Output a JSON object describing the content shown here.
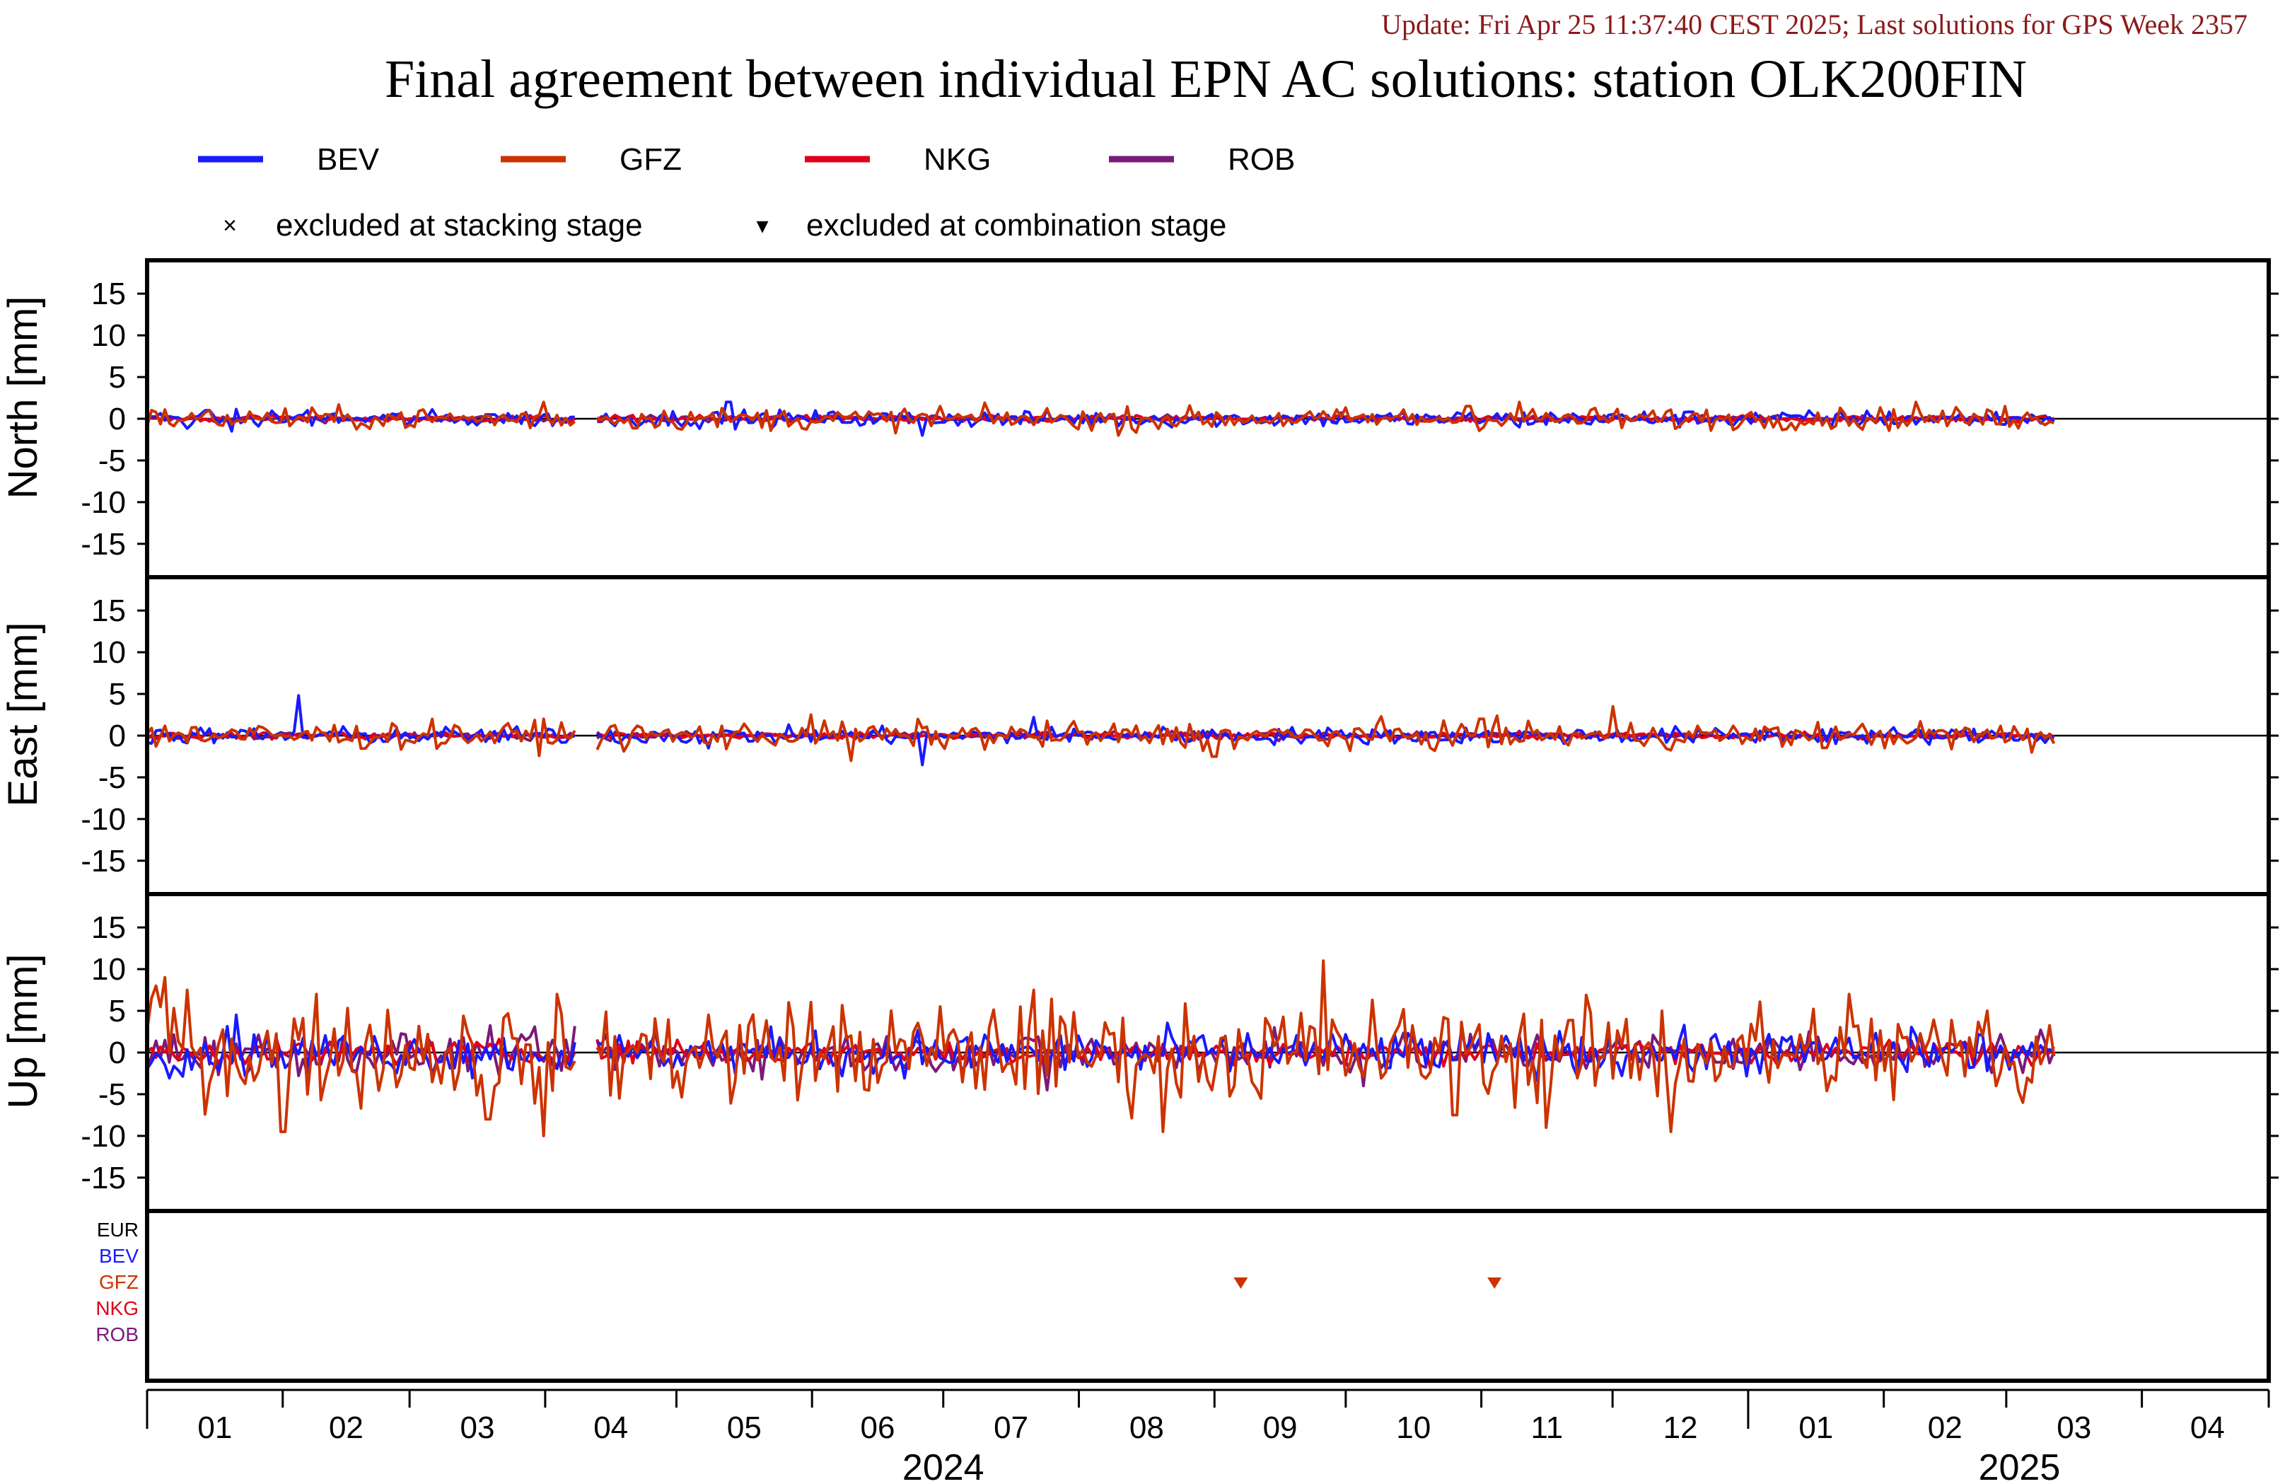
{
  "header": {
    "update_text": "Update: Fri Apr 25 11:37:40 CEST 2025; Last solutions for GPS Week 2357",
    "title": "Final agreement between individual EPN AC solutions: station OLK200FIN"
  },
  "legend": {
    "entries": [
      {
        "name": "BEV",
        "color": "#1a1aff"
      },
      {
        "name": "GFZ",
        "color": "#cc3300"
      },
      {
        "name": "NKG",
        "color": "#e0001a"
      },
      {
        "name": "ROB",
        "color": "#7a1a7a"
      }
    ],
    "markers": [
      {
        "symbol": "×",
        "label": "excluded at stacking stage"
      },
      {
        "symbol": "▾",
        "label": "excluded at combination stage"
      }
    ]
  },
  "chart_data": {
    "type": "line",
    "x_axis": {
      "start": "2024-01-01",
      "end": "2025-04-30",
      "month_labels": [
        "01",
        "02",
        "03",
        "04",
        "05",
        "06",
        "07",
        "08",
        "09",
        "10",
        "11",
        "12",
        "01",
        "02",
        "03",
        "04"
      ],
      "year_labels": [
        "2024",
        "2025"
      ]
    },
    "panels": [
      {
        "ylabel": "North [mm]",
        "ylim": [
          -19,
          19
        ],
        "ticks": [
          15,
          10,
          5,
          0,
          -5,
          -10,
          -15
        ],
        "series": [
          {
            "name": "BEV",
            "points": [
              [
                "2024-01-20",
                -1.5
              ],
              [
                "2024-02-07",
                1.0
              ],
              [
                "2024-03-20",
                0.5
              ],
              [
                "2024-05-13",
                2.0
              ],
              [
                "2024-06-26",
                -2.0
              ],
              [
                "2024-09-12",
                -0.5
              ],
              [
                "2024-11-10",
                -1.0
              ],
              [
                "2025-01-20",
                -1.0
              ],
              [
                "2025-03-10",
                0.0
              ]
            ]
          },
          {
            "name": "GFZ",
            "points": [
              [
                "2024-01-15",
                1.0
              ],
              [
                "2024-04-01",
                2.0
              ],
              [
                "2024-06-30",
                1.5
              ],
              [
                "2024-08-10",
                -2.0
              ],
              [
                "2024-10-29",
                1.5
              ],
              [
                "2024-11-10",
                2.0
              ],
              [
                "2025-02-08",
                2.0
              ],
              [
                "2025-03-01",
                1.5
              ]
            ]
          },
          {
            "name": "NKG",
            "points": [
              [
                "2024-02-01",
                0.2
              ],
              [
                "2024-07-01",
                -0.2
              ],
              [
                "2025-01-01",
                0.2
              ]
            ]
          },
          {
            "name": "ROB",
            "points": [
              [
                "2024-03-01",
                -0.3
              ],
              [
                "2024-09-01",
                0.3
              ],
              [
                "2025-02-01",
                -0.3
              ]
            ]
          }
        ]
      },
      {
        "ylabel": "East [mm]",
        "ylim": [
          -19,
          19
        ],
        "ticks": [
          15,
          10,
          5,
          0,
          -5,
          -10,
          -15
        ],
        "series": [
          {
            "name": "BEV",
            "points": [
              [
                "2024-02-05",
                4.8
              ],
              [
                "2024-06-26",
                -3.5
              ],
              [
                "2024-07-22",
                2.2
              ],
              [
                "2024-05-08",
                -1.5
              ],
              [
                "2025-01-20",
                0.8
              ]
            ]
          },
          {
            "name": "GFZ",
            "points": [
              [
                "2024-01-12",
                1.0
              ],
              [
                "2024-04-01",
                2.0
              ],
              [
                "2024-06-01",
                2.5
              ],
              [
                "2024-06-10",
                -3.0
              ],
              [
                "2024-09-01",
                -2.5
              ],
              [
                "2024-11-01",
                2.0
              ],
              [
                "2024-12-01",
                3.5
              ],
              [
                "2025-03-07",
                -2.0
              ]
            ]
          },
          {
            "name": "NKG",
            "points": [
              [
                "2024-03-01",
                0.2
              ],
              [
                "2024-10-01",
                -0.2
              ]
            ]
          },
          {
            "name": "ROB",
            "points": [
              [
                "2024-04-01",
                -0.2
              ],
              [
                "2024-12-01",
                0.2
              ]
            ]
          }
        ]
      },
      {
        "ylabel": "Up [mm]",
        "ylim": [
          -19,
          19
        ],
        "ticks": [
          15,
          10,
          5,
          0,
          -5,
          -10,
          -15
        ],
        "series": [
          {
            "name": "BEV",
            "points": [
              [
                "2024-01-21",
                4.5
              ],
              [
                "2024-06-15",
                -2.5
              ],
              [
                "2024-08-15",
                -2.0
              ],
              [
                "2025-02-08",
                2.0
              ]
            ]
          },
          {
            "name": "GFZ",
            "points": [
              [
                "2024-01-03",
                8.0
              ],
              [
                "2024-01-05",
                9.0
              ],
              [
                "2024-01-10",
                7.5
              ],
              [
                "2024-02-01",
                -9.5
              ],
              [
                "2024-02-09",
                7.0
              ],
              [
                "2024-03-19",
                -8.0
              ],
              [
                "2024-04-01",
                -10.0
              ],
              [
                "2024-05-27",
                6.0
              ],
              [
                "2024-07-22",
                7.5
              ],
              [
                "2024-08-20",
                -9.5
              ],
              [
                "2024-09-26",
                11.0
              ],
              [
                "2024-10-26",
                -7.5
              ],
              [
                "2024-11-16",
                -9.0
              ],
              [
                "2024-12-14",
                -9.5
              ],
              [
                "2025-01-24",
                7.0
              ],
              [
                "2025-02-25",
                5.0
              ],
              [
                "2025-03-05",
                -6.0
              ]
            ]
          },
          {
            "name": "NKG",
            "points": [
              [
                "2024-05-01",
                1.5
              ],
              [
                "2024-10-01",
                -1.5
              ]
            ]
          },
          {
            "name": "ROB",
            "points": [
              [
                "2024-07-25",
                -4.5
              ],
              [
                "2024-09-15",
                3.0
              ],
              [
                "2024-10-05",
                -4.0
              ],
              [
                "2025-01-15",
                2.5
              ]
            ]
          }
        ]
      }
    ],
    "exclusion_panel": {
      "rows": [
        {
          "name": "EUR",
          "color": "#000000"
        },
        {
          "name": "BEV",
          "color": "#1a1aff"
        },
        {
          "name": "GFZ",
          "color": "#cc3300"
        },
        {
          "name": "NKG",
          "color": "#e0001a"
        },
        {
          "name": "ROB",
          "color": "#7a1a7a"
        }
      ],
      "events": [
        {
          "ac": "GFZ",
          "date": "2024-09-07",
          "stage": "combination"
        },
        {
          "ac": "GFZ",
          "date": "2024-11-04",
          "stage": "combination"
        }
      ]
    }
  }
}
